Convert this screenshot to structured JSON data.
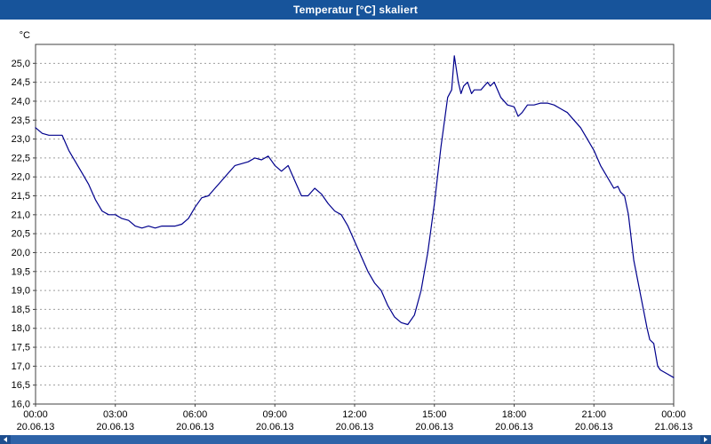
{
  "window": {
    "title": "Temperatur [°C] skaliert"
  },
  "colors": {
    "title_bar": "#17549B",
    "line": "#00008C",
    "grid": "#9E9E9E",
    "frame": "#404040",
    "scrollbar": "#2E63A8",
    "scrollbar_arrow": "#1D4E8F",
    "plot_background": "#FFFFFF"
  },
  "chart_data": {
    "type": "line",
    "title": "Temperatur [°C] skaliert",
    "xlabel": "",
    "ylabel": "°C",
    "legend": "none",
    "grid": true,
    "grid_style": "dashed",
    "xlim": [
      0,
      24
    ],
    "ylim": [
      16.0,
      25.5
    ],
    "x_ticks": [
      0,
      3,
      6,
      9,
      12,
      15,
      18,
      21,
      24
    ],
    "x_tick_times": [
      "00:00",
      "03:00",
      "06:00",
      "09:00",
      "12:00",
      "15:00",
      "18:00",
      "21:00",
      "00:00"
    ],
    "x_tick_dates": [
      "20.06.13",
      "20.06.13",
      "20.06.13",
      "20.06.13",
      "20.06.13",
      "20.06.13",
      "20.06.13",
      "20.06.13",
      "21.06.13"
    ],
    "y_ticks": [
      25.0,
      24.5,
      24.0,
      23.5,
      23.0,
      22.5,
      22.0,
      21.5,
      21.0,
      20.5,
      20.0,
      19.5,
      19.0,
      18.5,
      18.0,
      17.5,
      17.0,
      16.5,
      16.0
    ],
    "y_tick_labels": [
      "25,0",
      "24,5",
      "24,0",
      "23,5",
      "23,0",
      "22,5",
      "22,0",
      "21,5",
      "21,0",
      "20,5",
      "20,0",
      "19,5",
      "19,0",
      "18,5",
      "18,0",
      "17,5",
      "17,0",
      "16,5",
      "16,0"
    ],
    "y_unit_label": "°C",
    "series": [
      {
        "name": "Temperatur",
        "color": "#00008C",
        "points": [
          [
            0,
            23.3
          ],
          [
            0.25,
            23.15
          ],
          [
            0.5,
            23.1
          ],
          [
            0.75,
            23.1
          ],
          [
            1,
            23.1
          ],
          [
            1.25,
            22.7
          ],
          [
            1.5,
            22.4
          ],
          [
            1.75,
            22.1
          ],
          [
            2,
            21.8
          ],
          [
            2.25,
            21.4
          ],
          [
            2.5,
            21.1
          ],
          [
            2.75,
            21.0
          ],
          [
            3,
            21.0
          ],
          [
            3.25,
            20.9
          ],
          [
            3.5,
            20.85
          ],
          [
            3.75,
            20.7
          ],
          [
            4,
            20.65
          ],
          [
            4.25,
            20.7
          ],
          [
            4.5,
            20.65
          ],
          [
            4.75,
            20.7
          ],
          [
            5,
            20.7
          ],
          [
            5.25,
            20.7
          ],
          [
            5.5,
            20.75
          ],
          [
            5.75,
            20.9
          ],
          [
            6,
            21.2
          ],
          [
            6.25,
            21.45
          ],
          [
            6.5,
            21.5
          ],
          [
            6.75,
            21.7
          ],
          [
            7,
            21.9
          ],
          [
            7.25,
            22.1
          ],
          [
            7.5,
            22.3
          ],
          [
            7.75,
            22.35
          ],
          [
            8,
            22.4
          ],
          [
            8.25,
            22.5
          ],
          [
            8.5,
            22.45
          ],
          [
            8.75,
            22.55
          ],
          [
            9,
            22.3
          ],
          [
            9.25,
            22.15
          ],
          [
            9.5,
            22.3
          ],
          [
            9.75,
            21.9
          ],
          [
            10,
            21.5
          ],
          [
            10.25,
            21.5
          ],
          [
            10.5,
            21.7
          ],
          [
            10.75,
            21.55
          ],
          [
            11,
            21.3
          ],
          [
            11.25,
            21.1
          ],
          [
            11.5,
            21.0
          ],
          [
            11.75,
            20.7
          ],
          [
            12,
            20.3
          ],
          [
            12.25,
            19.9
          ],
          [
            12.5,
            19.5
          ],
          [
            12.75,
            19.2
          ],
          [
            13,
            19.0
          ],
          [
            13.25,
            18.6
          ],
          [
            13.5,
            18.3
          ],
          [
            13.75,
            18.15
          ],
          [
            14,
            18.1
          ],
          [
            14.25,
            18.35
          ],
          [
            14.5,
            19.0
          ],
          [
            14.75,
            20.0
          ],
          [
            15,
            21.3
          ],
          [
            15.25,
            22.8
          ],
          [
            15.5,
            24.1
          ],
          [
            15.65,
            24.3
          ],
          [
            15.75,
            25.2
          ],
          [
            15.9,
            24.5
          ],
          [
            16,
            24.2
          ],
          [
            16.1,
            24.4
          ],
          [
            16.25,
            24.5
          ],
          [
            16.4,
            24.2
          ],
          [
            16.5,
            24.3
          ],
          [
            16.75,
            24.3
          ],
          [
            17,
            24.5
          ],
          [
            17.1,
            24.4
          ],
          [
            17.25,
            24.5
          ],
          [
            17.5,
            24.1
          ],
          [
            17.75,
            23.9
          ],
          [
            18,
            23.85
          ],
          [
            18.15,
            23.6
          ],
          [
            18.3,
            23.7
          ],
          [
            18.5,
            23.9
          ],
          [
            18.75,
            23.9
          ],
          [
            19,
            23.95
          ],
          [
            19.25,
            23.95
          ],
          [
            19.5,
            23.9
          ],
          [
            19.75,
            23.8
          ],
          [
            20,
            23.7
          ],
          [
            20.25,
            23.5
          ],
          [
            20.5,
            23.3
          ],
          [
            20.75,
            23.0
          ],
          [
            21,
            22.7
          ],
          [
            21.25,
            22.3
          ],
          [
            21.5,
            22.0
          ],
          [
            21.75,
            21.7
          ],
          [
            21.9,
            21.75
          ],
          [
            22,
            21.6
          ],
          [
            22.15,
            21.5
          ],
          [
            22.3,
            21.0
          ],
          [
            22.5,
            19.8
          ],
          [
            22.75,
            18.9
          ],
          [
            23,
            18.0
          ],
          [
            23.1,
            17.7
          ],
          [
            23.25,
            17.6
          ],
          [
            23.4,
            17.0
          ],
          [
            23.5,
            16.9
          ],
          [
            23.75,
            16.8
          ],
          [
            24,
            16.7
          ]
        ]
      }
    ]
  }
}
